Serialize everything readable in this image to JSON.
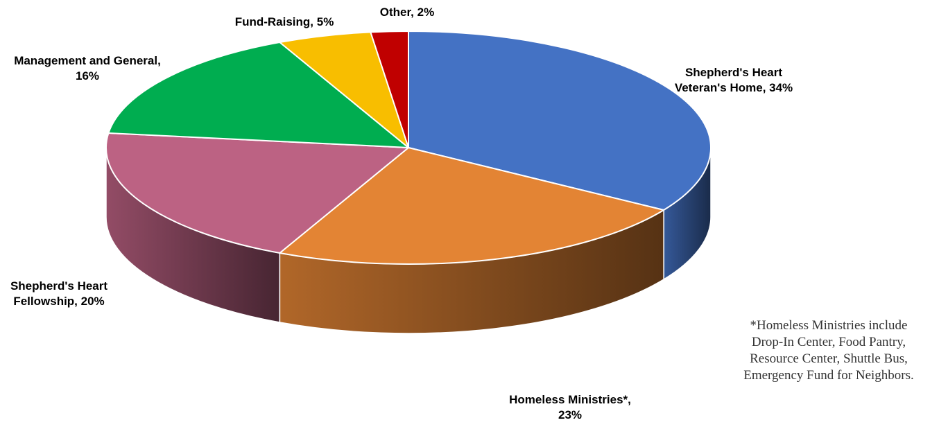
{
  "chart_data": {
    "type": "pie",
    "style": "3d",
    "slices": [
      {
        "label_lines": [
          "Shepherd's Heart",
          "Veteran's Home, 34%"
        ],
        "value": 34,
        "color": "#4472C4"
      },
      {
        "label_lines": [
          "Homeless Ministries*,",
          "23%"
        ],
        "value": 23,
        "color": "#E38434"
      },
      {
        "label_lines": [
          "Shepherd's Heart",
          "Fellowship, 20%"
        ],
        "value": 20,
        "color": "#BC6283"
      },
      {
        "label_lines": [
          "Management and General,",
          "16%"
        ],
        "value": 16,
        "color": "#00AD50"
      },
      {
        "label_lines": [
          "Fund-Raising, 5%"
        ],
        "value": 5,
        "color": "#F8BE00"
      },
      {
        "label_lines": [
          "Other, 2%"
        ],
        "value": 2,
        "color": "#C00000"
      }
    ]
  },
  "note_lines": [
    "*Homeless Ministries include",
    "Drop-In Center, Food Pantry,",
    "Resource Center, Shuttle Bus,",
    "Emergency Fund for Neighbors."
  ]
}
